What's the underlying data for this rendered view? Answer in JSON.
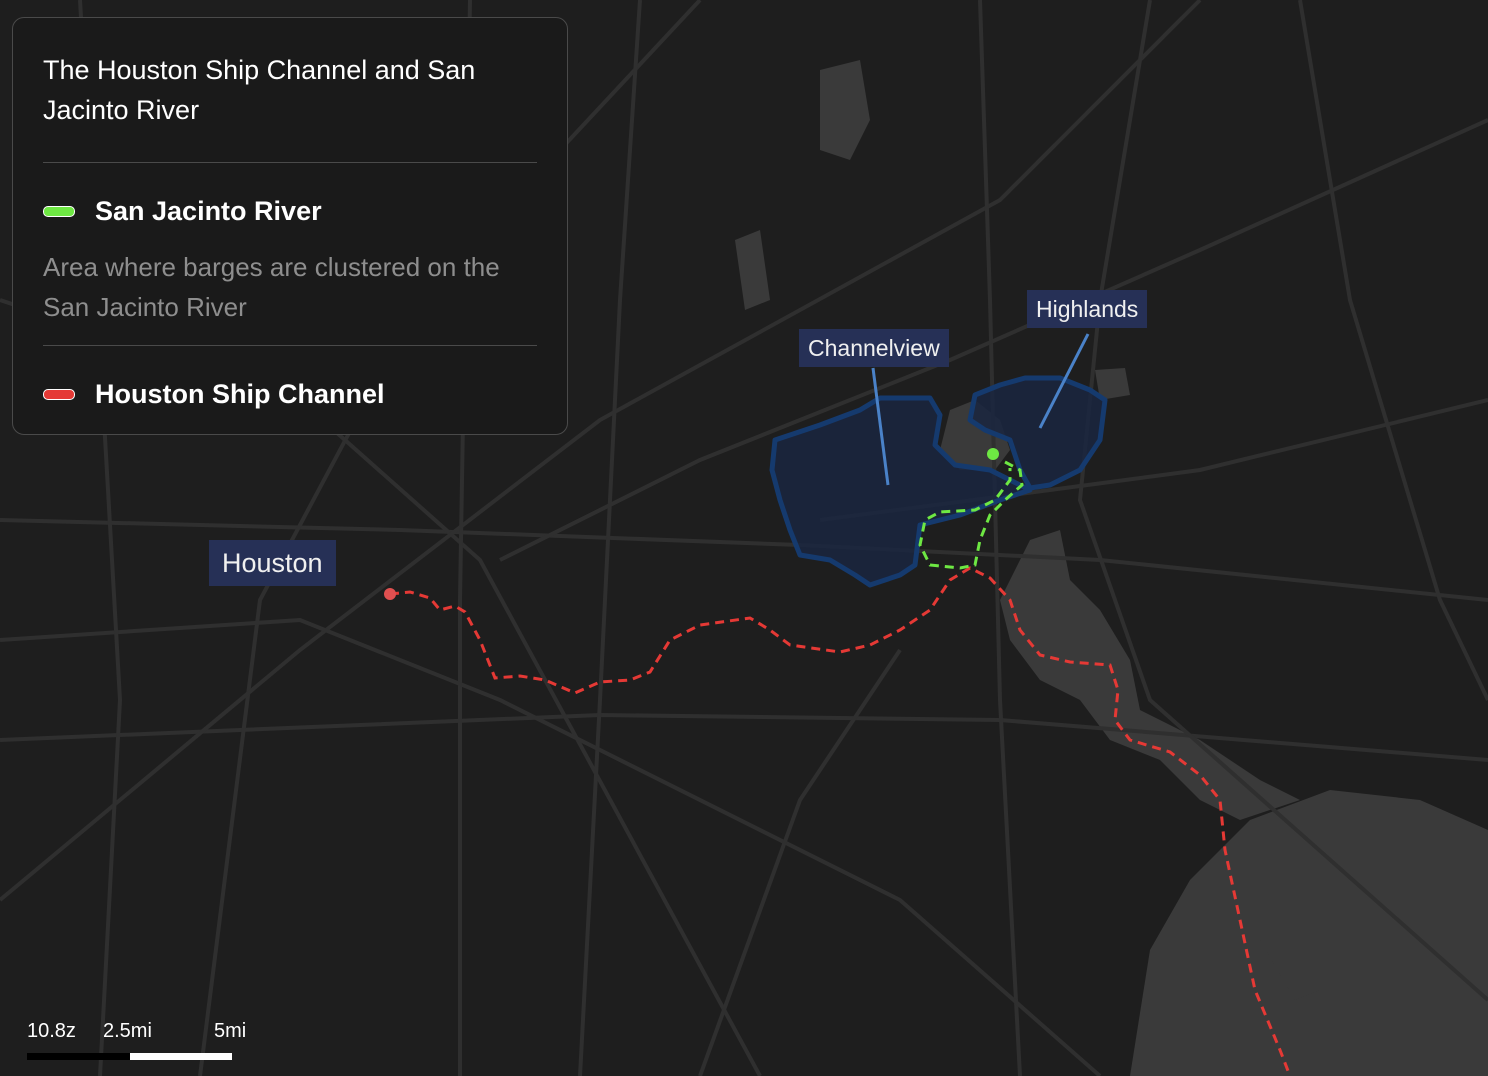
{
  "legend": {
    "title": "The Houston Ship Channel and San Jacinto River",
    "items": [
      {
        "label": "San Jacinto River",
        "color": "#6ee843",
        "description": "Area where barges are clustered on the San Jacinto River"
      },
      {
        "label": "Houston Ship Channel",
        "color": "#e53935"
      }
    ]
  },
  "places": {
    "houston": "Houston",
    "channelview": "Channelview",
    "highlands": "Highlands"
  },
  "scale": {
    "zoom": "10.8z",
    "mid": "2.5mi",
    "end": "5mi"
  },
  "colors": {
    "background": "#1e1e1e",
    "road": "#2f2f2f",
    "water": "#3a3a3a",
    "area_outline": "#153a6e",
    "label_bg": "#263056",
    "leader": "#4a82c8"
  }
}
